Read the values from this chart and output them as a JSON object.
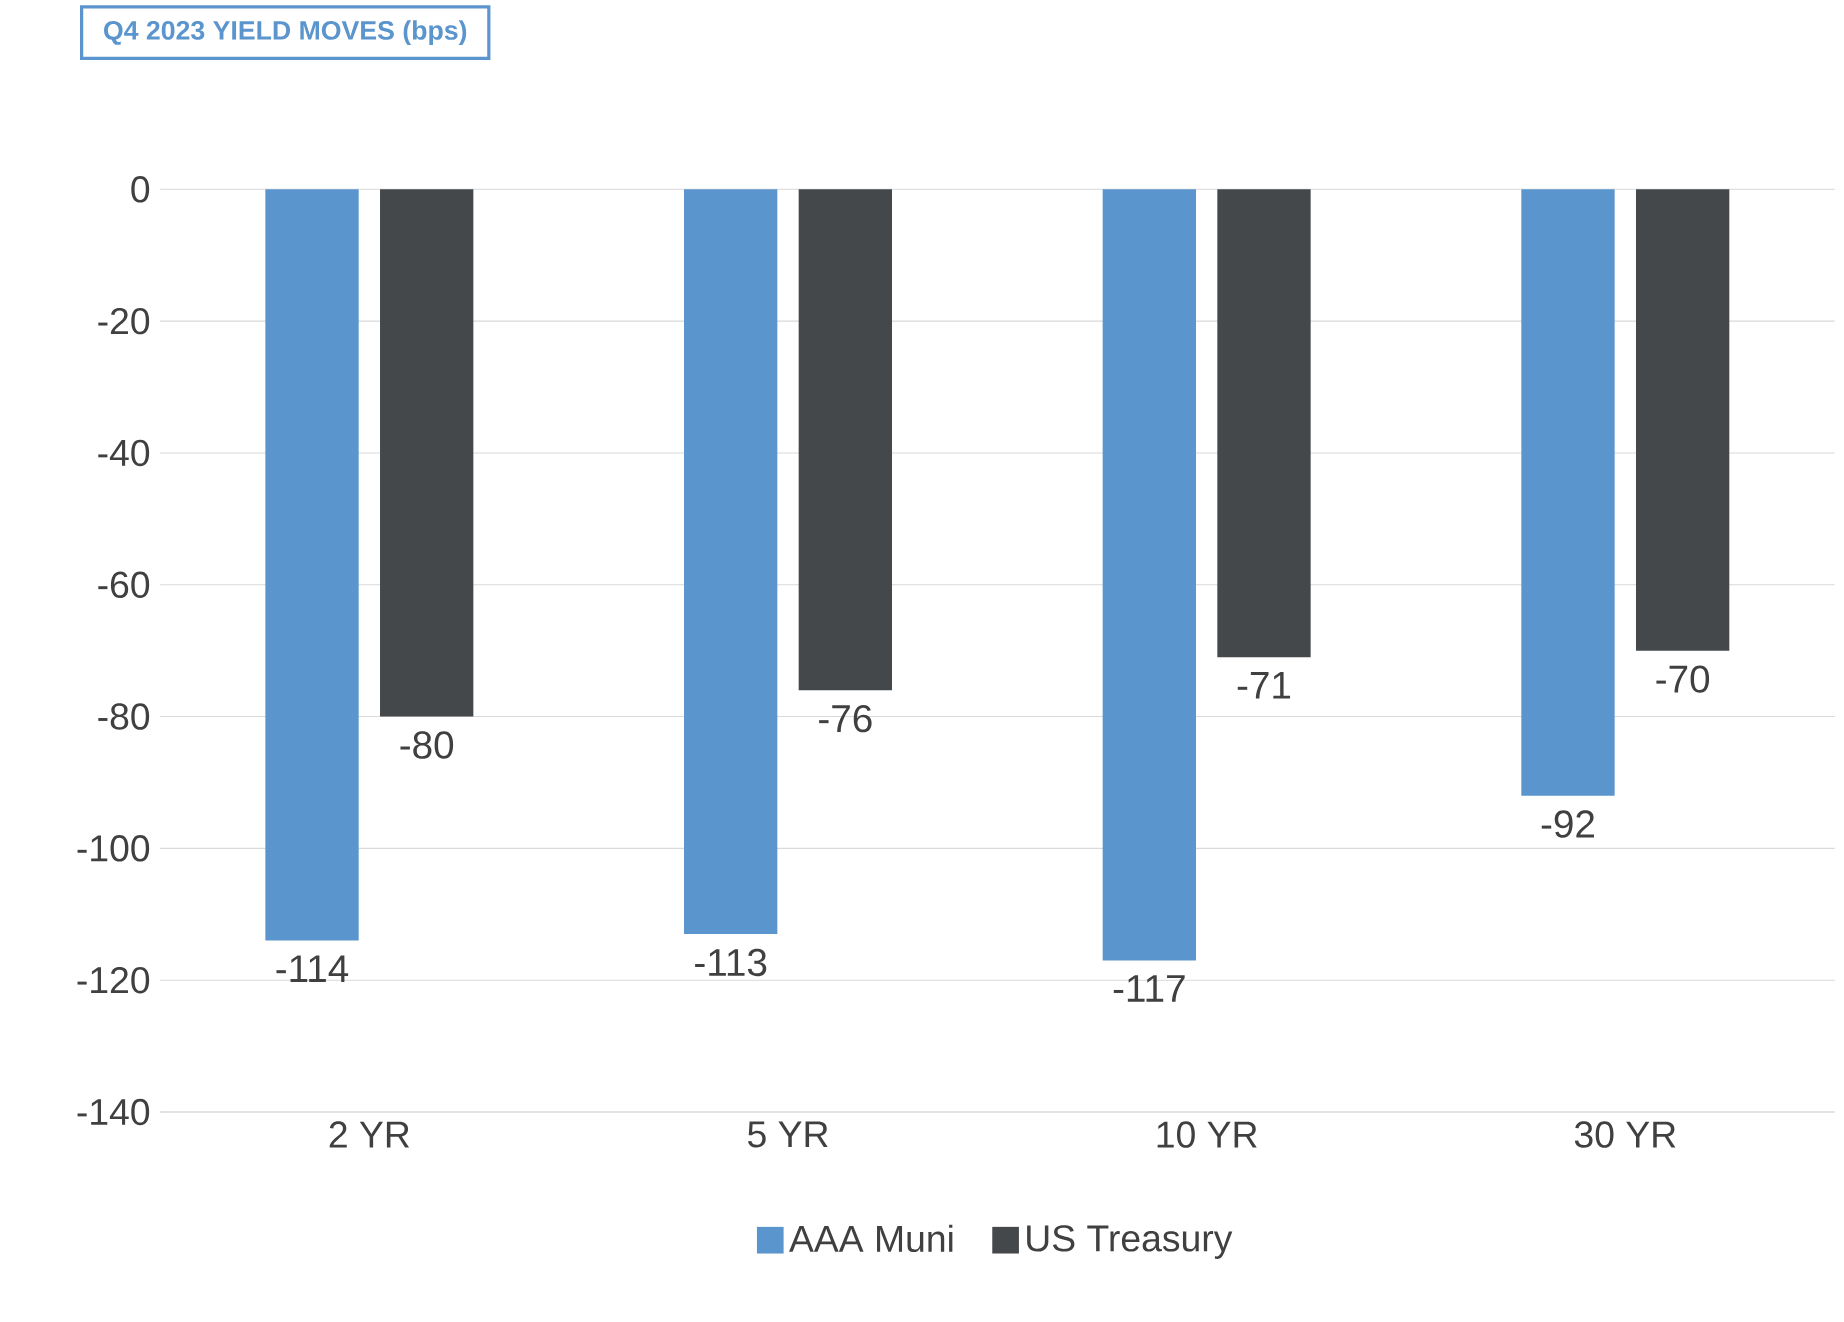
{
  "chart_data": {
    "type": "bar",
    "title": "Q4 2023 YIELD MOVES (bps)",
    "categories": [
      "2 YR",
      "5 YR",
      "10 YR",
      "30 YR"
    ],
    "series": [
      {
        "name": "AAA Muni",
        "color": "#5b95cd",
        "values": [
          -114,
          -113,
          -117,
          -92
        ]
      },
      {
        "name": "US Treasury",
        "color": "#45484b",
        "values": [
          -80,
          -76,
          -71,
          -70
        ]
      }
    ],
    "ylim": [
      -140,
      0
    ],
    "yticks": [
      -140,
      -120,
      -100,
      -80,
      -60,
      -40,
      -20,
      0
    ],
    "grid": "y",
    "legend": "bottom",
    "data_labels": true
  }
}
